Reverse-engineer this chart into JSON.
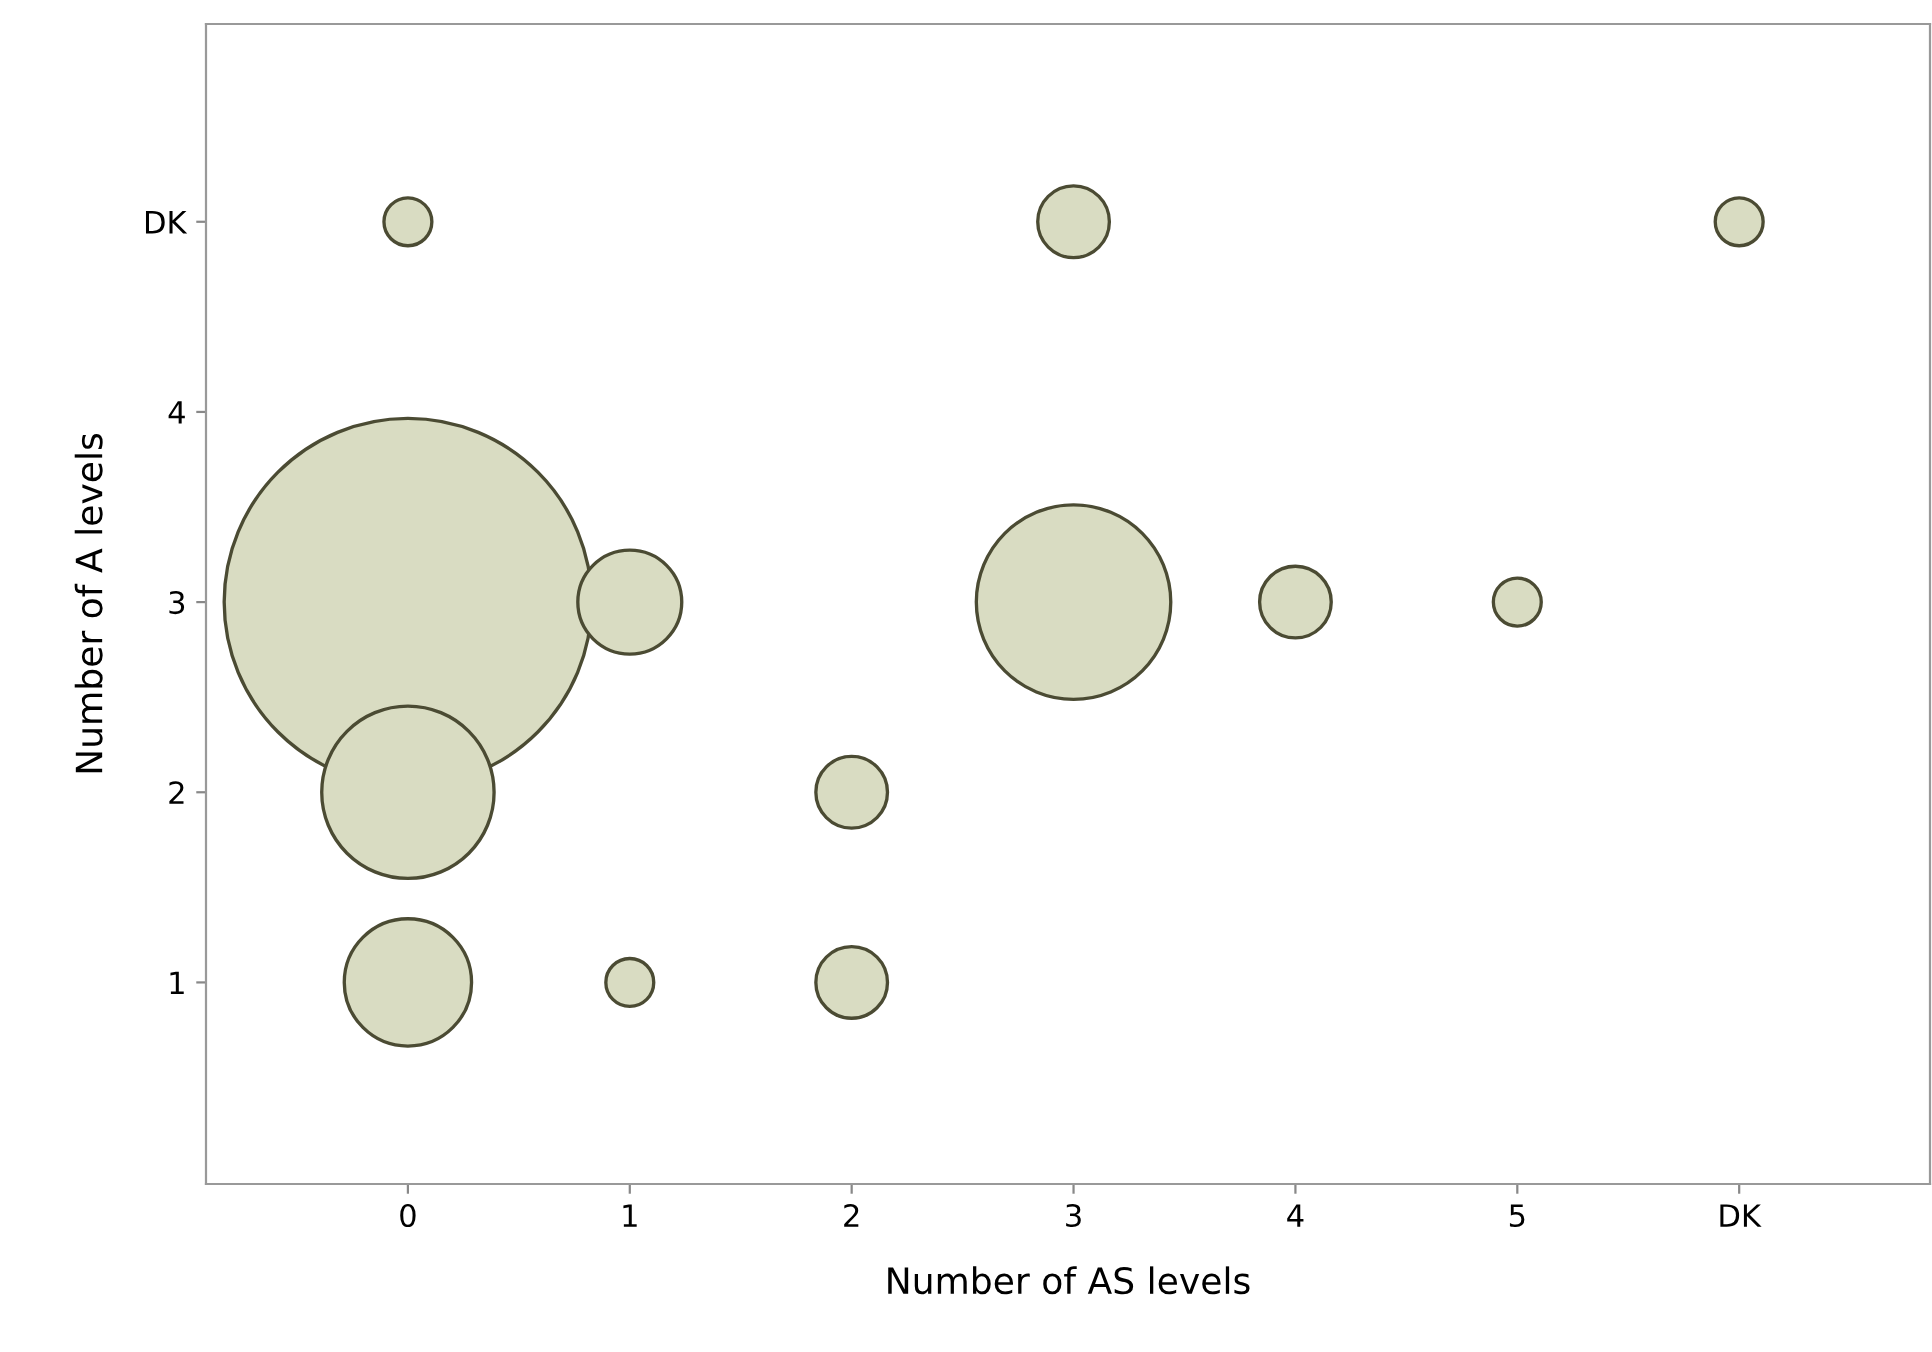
{
  "chart_data": {
    "type": "bubble",
    "xlabel": "Number of AS levels",
    "ylabel": "Number of A levels",
    "xlim": [
      -0.91,
      6.86
    ],
    "ylim": [
      -0.06,
      6.04
    ],
    "xticks": [
      0,
      1,
      2,
      3,
      4,
      5,
      {
        "value": 6,
        "label": "DK"
      }
    ],
    "yticks": [
      1,
      2,
      3,
      4,
      {
        "value": 5,
        "label": "DK"
      }
    ],
    "grid": false,
    "legend": false,
    "series": [
      {
        "color": "#d9dcc2",
        "x": [
          0,
          0,
          0,
          1,
          1,
          2,
          2,
          3,
          4,
          5,
          0,
          3,
          6
        ],
        "values": [
          3,
          2,
          1,
          3,
          1,
          2,
          1,
          3,
          3,
          3,
          5,
          5,
          5
        ],
        "sizes": [
          1,
          0.22,
          0.12,
          0.08,
          0.017,
          0.038,
          0.038,
          0.28,
          0.038,
          0.017,
          0.017,
          0.038,
          0.017
        ]
      }
    ]
  }
}
